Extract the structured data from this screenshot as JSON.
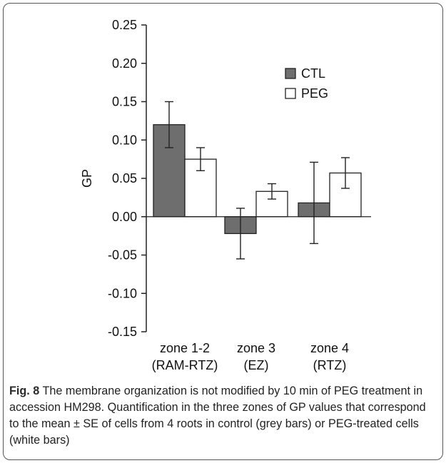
{
  "chart_data": {
    "type": "bar",
    "categories": [
      [
        "zone 1-2",
        "(RAM-RTZ)"
      ],
      [
        "zone 3",
        "(EZ)"
      ],
      [
        "zone 4",
        "(RTZ)"
      ]
    ],
    "ylabel": "GP",
    "xlabel": "",
    "ylim": [
      -0.15,
      0.25
    ],
    "yticks": [
      "0.25",
      "0.20",
      "0.15",
      "0.10",
      "0.05",
      "0.00",
      "-0.05",
      "-0.10",
      "-0.15"
    ],
    "legend_position": "top-right",
    "series": [
      {
        "name": "CTL",
        "color": "#6e6e6e",
        "values": [
          0.12,
          -0.022,
          0.018
        ],
        "errors": [
          0.03,
          0.033,
          0.053
        ]
      },
      {
        "name": "PEG",
        "color": "#ffffff",
        "values": [
          0.075,
          0.033,
          0.057
        ],
        "errors": [
          0.015,
          0.01,
          0.02
        ]
      }
    ]
  },
  "caption": {
    "label": "Fig. 8",
    "text": " The membrane organization is not modified by 10 min of PEG treatment in accession HM298. Quantification in the three zones of GP values that correspond to the mean ± SE of cells from 4 roots in control (grey bars) or PEG-treated cells (white bars)"
  }
}
